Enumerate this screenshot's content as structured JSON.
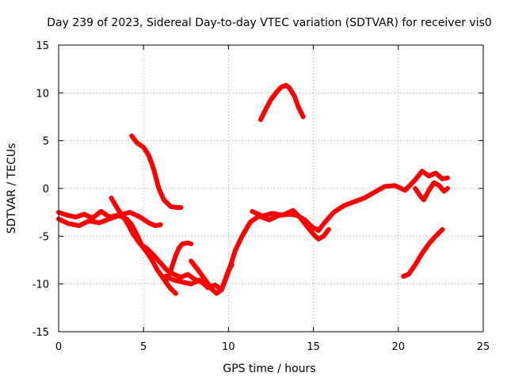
{
  "chart_data": {
    "type": "line",
    "title": "Day 239 of 2023, Sidereal Day-to-day VTEC variation (SDTVAR) for receiver vis0",
    "xlabel": "GPS time / hours",
    "ylabel": "SDTVAR / TECUs",
    "xlim": [
      0,
      25
    ],
    "ylim": [
      -15,
      15
    ],
    "xticks": [
      0,
      5,
      10,
      15,
      20,
      25
    ],
    "xtick_labels": [
      "0",
      "5",
      "10",
      "15",
      "20",
      "25"
    ],
    "yticks": [
      -15,
      -10,
      -5,
      0,
      5,
      10,
      15
    ],
    "ytick_labels": [
      "-15",
      "-10",
      "-5",
      "0",
      "5",
      "10",
      "15"
    ],
    "grid": true,
    "legend": "none",
    "series_color": "#ff0000",
    "series": [
      {
        "name": "trace-1",
        "x": [
          0.0,
          0.5,
          1.0,
          1.5,
          2.0,
          2.5,
          3.0,
          3.5,
          4.0,
          4.3,
          4.6,
          4.9,
          5.2,
          5.5,
          5.8,
          6.2,
          6.6,
          6.9
        ],
        "y": [
          -2.5,
          -2.8,
          -3.0,
          -2.7,
          -3.1,
          -2.4,
          -3.0,
          -2.8,
          -3.2,
          -3.8,
          -4.8,
          -6.0,
          -6.7,
          -7.5,
          -8.5,
          -9.5,
          -10.5,
          -11.0
        ]
      },
      {
        "name": "trace-2",
        "x": [
          0.0,
          0.6,
          1.2,
          1.8,
          2.4,
          3.0,
          3.6,
          4.2,
          4.8,
          5.3,
          5.7,
          6.0
        ],
        "y": [
          -3.2,
          -3.7,
          -3.9,
          -3.4,
          -3.6,
          -3.2,
          -2.8,
          -2.5,
          -3.0,
          -3.6,
          -3.9,
          -3.8
        ]
      },
      {
        "name": "trace-3",
        "x": [
          3.1,
          3.5,
          4.0,
          4.4,
          4.8,
          5.2,
          5.6,
          6.0,
          6.4,
          6.8,
          7.2,
          7.6,
          8.0,
          8.4,
          8.8
        ],
        "y": [
          -1.0,
          -2.2,
          -3.5,
          -4.8,
          -5.8,
          -6.3,
          -7.0,
          -7.8,
          -8.6,
          -9.0,
          -9.3,
          -9.0,
          -9.5,
          -9.8,
          -10.3
        ]
      },
      {
        "name": "trace-4",
        "x": [
          4.3,
          4.6,
          5.0,
          5.3,
          5.6,
          5.9,
          6.2,
          6.6,
          7.0,
          7.2
        ],
        "y": [
          5.5,
          4.8,
          4.3,
          3.5,
          2.0,
          0.0,
          -1.2,
          -1.9,
          -2.0,
          -2.0
        ]
      },
      {
        "name": "trace-5",
        "x": [
          6.3,
          6.6,
          6.9,
          7.1,
          7.3,
          7.6,
          7.8
        ],
        "y": [
          -9.8,
          -8.6,
          -7.0,
          -6.2,
          -5.8,
          -5.7,
          -5.8
        ]
      },
      {
        "name": "trace-6",
        "x": [
          7.8,
          8.2,
          8.6,
          9.0,
          9.3,
          9.6,
          9.8,
          10.0,
          10.2
        ],
        "y": [
          -7.6,
          -8.5,
          -9.5,
          -10.5,
          -11.0,
          -10.6,
          -9.6,
          -8.6,
          -8.0
        ]
      },
      {
        "name": "trace-7",
        "x": [
          6.3,
          6.8,
          7.3,
          7.8,
          8.3,
          8.8,
          9.2,
          9.6,
          9.9,
          10.1,
          10.4,
          10.8,
          11.3,
          11.8,
          12.4,
          13.0,
          13.6,
          14.0,
          14.5,
          14.9,
          15.3,
          15.7,
          16.2,
          16.8,
          17.4,
          18.0,
          18.6,
          19.2,
          19.8,
          20.4,
          21.0,
          21.4,
          21.8,
          22.2,
          22.6,
          22.9
        ],
        "y": [
          -9.2,
          -9.6,
          -9.8,
          -10.0,
          -9.6,
          -10.4,
          -10.1,
          -10.6,
          -9.2,
          -8.2,
          -6.5,
          -5.0,
          -3.5,
          -2.9,
          -3.3,
          -2.8,
          -2.7,
          -2.8,
          -3.3,
          -4.0,
          -4.4,
          -3.5,
          -2.5,
          -1.8,
          -1.4,
          -1.0,
          -0.4,
          0.2,
          0.3,
          -0.2,
          0.9,
          1.8,
          1.3,
          1.6,
          1.0,
          1.1
        ]
      },
      {
        "name": "trace-8",
        "x": [
          11.9,
          12.2,
          12.5,
          12.8,
          13.1,
          13.4,
          13.6,
          13.9,
          14.1,
          14.4
        ],
        "y": [
          7.2,
          8.3,
          9.3,
          10.0,
          10.6,
          10.8,
          10.5,
          9.6,
          8.6,
          7.5
        ]
      },
      {
        "name": "trace-9",
        "x": [
          11.4,
          12.0,
          12.6,
          13.2,
          13.8,
          14.2,
          14.6,
          15.0,
          15.3,
          15.6,
          15.9
        ],
        "y": [
          -2.4,
          -2.9,
          -2.6,
          -2.8,
          -2.3,
          -3.0,
          -3.9,
          -4.8,
          -5.3,
          -5.0,
          -4.3
        ]
      },
      {
        "name": "trace-10",
        "x": [
          21.0,
          21.3,
          21.5,
          21.8,
          22.1,
          22.4,
          22.7,
          22.9
        ],
        "y": [
          0.0,
          -0.8,
          -1.2,
          -0.2,
          0.6,
          0.3,
          -0.3,
          0.0
        ]
      },
      {
        "name": "trace-11",
        "x": [
          20.3,
          20.6,
          21.0,
          21.4,
          21.8,
          22.2,
          22.6
        ],
        "y": [
          -9.2,
          -9.0,
          -8.0,
          -6.8,
          -5.8,
          -5.0,
          -4.3
        ]
      }
    ]
  }
}
